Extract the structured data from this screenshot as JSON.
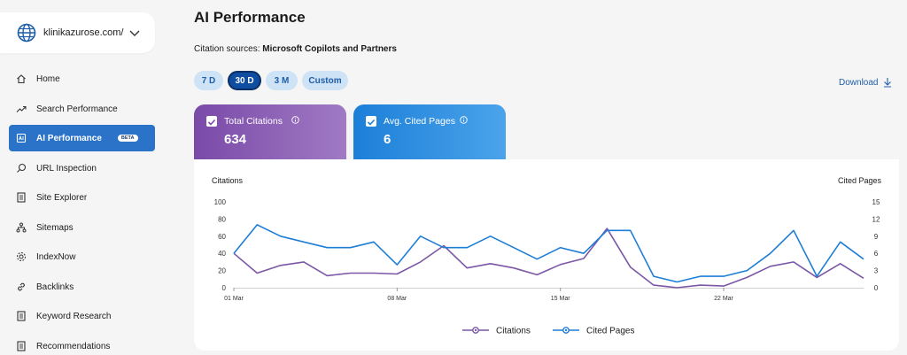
{
  "site": {
    "name": "klinikazurose.com/"
  },
  "nav": [
    {
      "label": "Home",
      "icon": "home-icon"
    },
    {
      "label": "Search Performance",
      "icon": "trending-icon"
    },
    {
      "label": "AI Performance",
      "icon": "ai-icon",
      "active": true,
      "badge": "BETA"
    },
    {
      "label": "URL Inspection",
      "icon": "search-icon"
    },
    {
      "label": "Site Explorer",
      "icon": "document-icon"
    },
    {
      "label": "Sitemaps",
      "icon": "sitemap-icon"
    },
    {
      "label": "IndexNow",
      "icon": "gear-icon"
    },
    {
      "label": "Backlinks",
      "icon": "link-icon"
    },
    {
      "label": "Keyword Research",
      "icon": "document-icon"
    },
    {
      "label": "Recommendations",
      "icon": "document-icon"
    }
  ],
  "page": {
    "title": "AI Performance",
    "sources_label": "Citation sources:",
    "sources_value": "Microsoft Copilots and Partners"
  },
  "periods": [
    {
      "label": "7 D",
      "selected": false
    },
    {
      "label": "30 D",
      "selected": true
    },
    {
      "label": "3 M",
      "selected": false
    },
    {
      "label": "Custom",
      "selected": false
    }
  ],
  "download_label": "Download",
  "cards": {
    "citations": {
      "label": "Total Citations",
      "value": "634"
    },
    "pages": {
      "label": "Avg. Cited Pages",
      "value": "6"
    }
  },
  "colors": {
    "citations": "#7b57a6",
    "pages": "#1e7ed6",
    "accent": "#2b73c9"
  },
  "chart_data": {
    "type": "line",
    "x": [
      "01 Mar",
      "02 Mar",
      "03 Mar",
      "04 Mar",
      "05 Mar",
      "06 Mar",
      "07 Mar",
      "08 Mar",
      "09 Mar",
      "10 Mar",
      "11 Mar",
      "12 Mar",
      "13 Mar",
      "14 Mar",
      "15 Mar",
      "16 Mar",
      "17 Mar",
      "18 Mar",
      "19 Mar",
      "20 Mar",
      "21 Mar",
      "22 Mar",
      "23 Mar",
      "24 Mar",
      "25 Mar",
      "26 Mar",
      "27 Mar",
      "28 Mar"
    ],
    "xticks": [
      "01 Mar",
      "08 Mar",
      "15 Mar",
      "22 Mar"
    ],
    "series": [
      {
        "name": "Citations",
        "axis": "left",
        "values": [
          40,
          17,
          26,
          30,
          14,
          17,
          17,
          16,
          30,
          49,
          23,
          28,
          23,
          15,
          27,
          34,
          69,
          24,
          3,
          0,
          3,
          2,
          12,
          25,
          30,
          12,
          28,
          11
        ]
      },
      {
        "name": "Cited Pages",
        "axis": "right",
        "values": [
          6,
          11,
          9,
          8,
          7,
          7,
          8,
          4,
          9,
          7,
          7,
          9,
          7,
          5,
          7,
          6,
          10,
          10,
          2,
          1,
          2,
          2,
          3,
          6,
          10,
          2,
          8,
          5
        ]
      }
    ],
    "ylabel_left": "Citations",
    "ylabel_right": "Cited Pages",
    "ylim_left": [
      0,
      100
    ],
    "ylim_right": [
      0,
      15
    ],
    "yticks_left": [
      0,
      20,
      40,
      60,
      80,
      100
    ],
    "yticks_right": [
      0,
      3,
      6,
      9,
      12,
      15
    ],
    "legend": "bottom-center",
    "grid": false
  }
}
